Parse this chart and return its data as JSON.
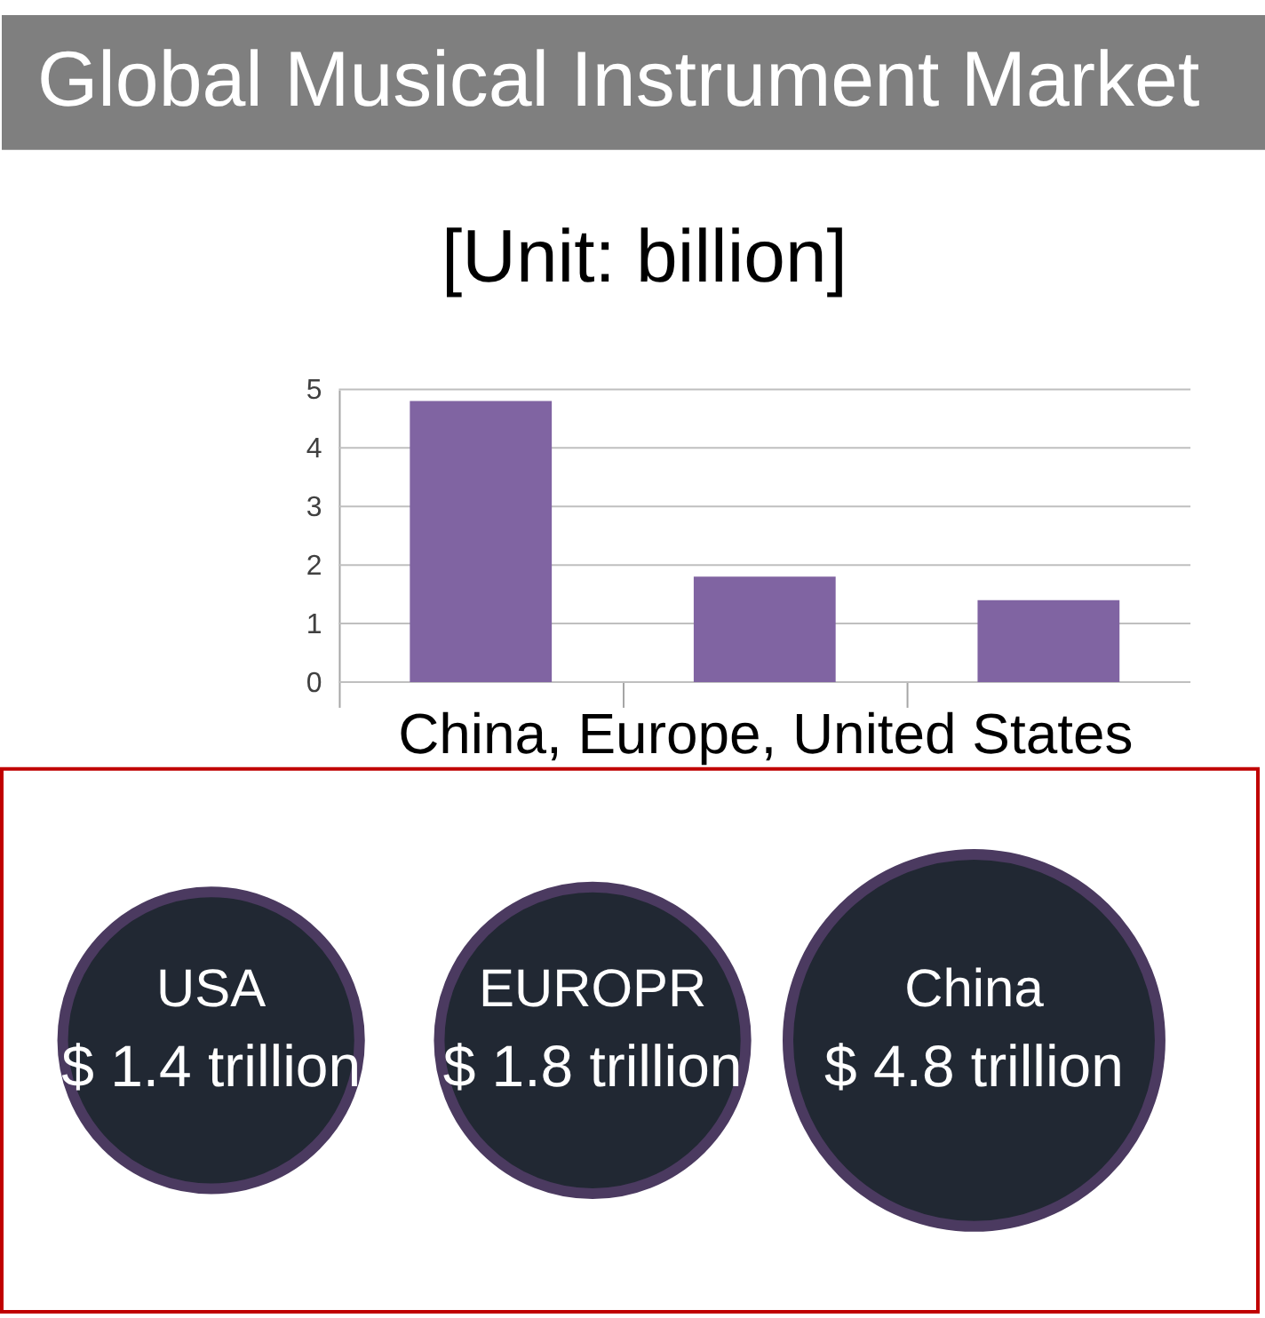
{
  "chart_data": [
    {
      "type": "bar",
      "title": "Global Musical Instrument Market",
      "subtitle": "[Unit: billion]",
      "xlabel": "China, Europe, United States",
      "categories": [
        null,
        null,
        null
      ],
      "values": [
        4.8,
        1.8,
        1.4
      ],
      "color": "#8064a2",
      "ylim": [
        0,
        5
      ],
      "yticks": [
        0,
        1,
        2,
        3,
        4,
        5
      ],
      "grid": "y",
      "tick_labels": "y"
    },
    {
      "type": "other",
      "categories": [
        "USA",
        "EUROPR",
        "China"
      ],
      "values": [
        1.4,
        1.8,
        4.8
      ],
      "value_labels": [
        "$ 1.4 trillion",
        "$ 1.8 trillion",
        "$ 4.8 trillion"
      ],
      "colors": [
        "#212833",
        "#212833",
        "#212833"
      ]
    }
  ]
}
